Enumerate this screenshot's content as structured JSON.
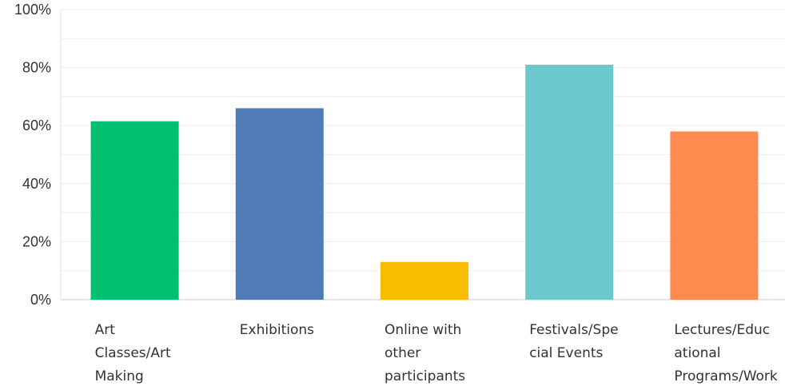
{
  "chart_data": {
    "type": "bar",
    "title": "",
    "xlabel": "",
    "ylabel": "",
    "ylim": [
      0,
      100
    ],
    "y_tick_labels": [
      "0%",
      "20%",
      "40%",
      "60%",
      "80%",
      "100%"
    ],
    "y_tick_values": [
      0,
      20,
      40,
      60,
      80,
      100
    ],
    "grid": true,
    "legend": "none",
    "categories": [
      [
        "Art",
        "Classes/Art",
        "Making"
      ],
      [
        "Exhibitions"
      ],
      [
        "Online with",
        "other",
        "participants"
      ],
      [
        "Festivals/Spe",
        "cial Events"
      ],
      [
        "Lectures/Educ",
        "ational",
        "Programs/Work"
      ]
    ],
    "values": [
      61.5,
      66,
      13,
      81,
      58
    ],
    "colors": [
      "#00BF6F",
      "#507CB6",
      "#F9BE00",
      "#6BC8CD",
      "#FF8B4F"
    ]
  }
}
